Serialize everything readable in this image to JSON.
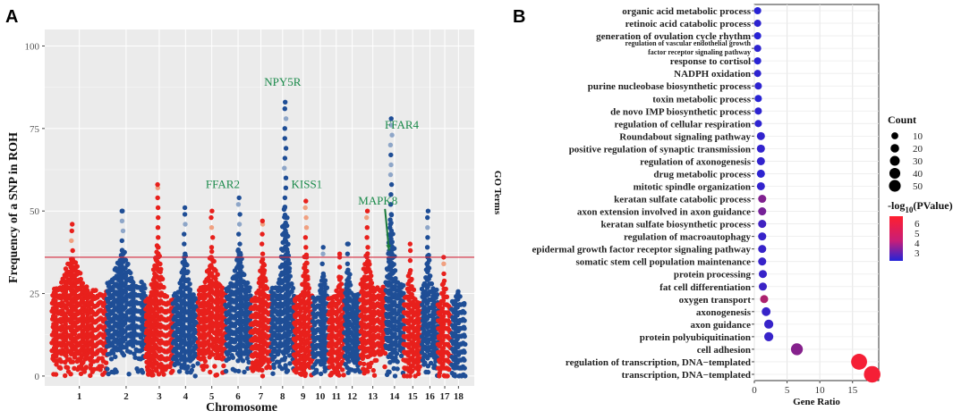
{
  "chart_data": [
    {
      "type": "scatter",
      "panel_label": "A",
      "title": "",
      "xlabel": "Chromosome",
      "ylabel": "Frequency of a SNP in ROH",
      "ylim": [
        -3,
        105
      ],
      "yticks": [
        0,
        25,
        50,
        75,
        100
      ],
      "grid": true,
      "threshold": 36,
      "colors": {
        "odd": "#e8201c",
        "even": "#1f4e96",
        "light_red": "#f0a080",
        "light_blue": "#8ea6c8",
        "threshold": "#d62a3c",
        "gene_label": "#1a8a4a",
        "arrow": "#1a7a3a"
      },
      "chromosomes": [
        {
          "label": "1",
          "n": 48,
          "base": 16,
          "peak": 46
        },
        {
          "label": "2",
          "n": 34,
          "base": 19,
          "peak": 50
        },
        {
          "label": "3",
          "n": 24,
          "base": 14,
          "peak": 58
        },
        {
          "label": "4",
          "n": 22,
          "base": 15,
          "peak": 51
        },
        {
          "label": "5",
          "n": 24,
          "base": 17,
          "peak": 50
        },
        {
          "label": "6",
          "n": 22,
          "base": 18,
          "peak": 54
        },
        {
          "label": "7",
          "n": 18,
          "base": 15,
          "peak": 47
        },
        {
          "label": "8",
          "n": 20,
          "base": 17,
          "peak": 83
        },
        {
          "label": "9",
          "n": 16,
          "base": 14,
          "peak": 53
        },
        {
          "label": "10",
          "n": 14,
          "base": 15,
          "peak": 39
        },
        {
          "label": "11",
          "n": 14,
          "base": 14,
          "peak": 37
        },
        {
          "label": "12",
          "n": 14,
          "base": 15,
          "peak": 40
        },
        {
          "label": "13",
          "n": 22,
          "base": 17,
          "peak": 50
        },
        {
          "label": "14",
          "n": 16,
          "base": 18,
          "peak": 78
        },
        {
          "label": "15",
          "n": 16,
          "base": 13,
          "peak": 40
        },
        {
          "label": "16",
          "n": 14,
          "base": 17,
          "peak": 50
        },
        {
          "label": "17",
          "n": 12,
          "base": 12,
          "peak": 36
        },
        {
          "label": "18",
          "n": 12,
          "base": 13,
          "peak": 25
        }
      ],
      "annotations": [
        {
          "text": "NPY5R",
          "chrom": "8",
          "y": 88,
          "frac": 0.5
        },
        {
          "text": "FFAR4",
          "chrom": "14",
          "y": 75,
          "frac": 0.9
        },
        {
          "text": "FFAR2",
          "chrom": "5",
          "y": 57,
          "frac": 0.9
        },
        {
          "text": "KISS1",
          "chrom": "9",
          "y": 57,
          "frac": 0.7
        },
        {
          "text": "MAPK8",
          "chrom": "13",
          "y": 52,
          "frac": 0.7,
          "arrow_to": {
            "chrom": "14",
            "y": 38,
            "frac": 0.2
          }
        }
      ]
    },
    {
      "type": "scatter",
      "subtype": "go-enrichment-dot",
      "panel_label": "B",
      "title": "",
      "xlabel": "Gene Ratio",
      "ylabel": "GO Terms",
      "xlim": [
        0,
        19
      ],
      "xticks": [
        0,
        5,
        10,
        15
      ],
      "grid": true,
      "legend_position": "right",
      "size_legend": {
        "title": "Count",
        "values": [
          10,
          20,
          30,
          40,
          50
        ]
      },
      "color_legend": {
        "title_prefix": "-log",
        "title_sub": "10",
        "title_suffix": "(PValue)",
        "ticks": [
          6,
          5,
          4,
          3
        ],
        "low_color": "#2323d8",
        "high_color": "#ff1f2e",
        "range": [
          2.2,
          6.7
        ]
      },
      "terms": [
        {
          "term": "organic acid metabolic process",
          "ratio": 0.5,
          "count": 3,
          "pvalue": 2.3
        },
        {
          "term": "retinoic acid catabolic process",
          "ratio": 0.5,
          "count": 3,
          "pvalue": 2.4
        },
        {
          "term": "generation of ovulation cycle rhythm",
          "ratio": 0.5,
          "count": 3,
          "pvalue": 2.3
        },
        {
          "term": "regulation of vascular endothelial growth factor receptor signaling pathway",
          "lines": [
            "regulation of vascular endothelial growth",
            "factor receptor signaling pathway"
          ],
          "ratio": 0.5,
          "count": 3,
          "pvalue": 2.4
        },
        {
          "term": "response to cortisol",
          "ratio": 0.5,
          "count": 3,
          "pvalue": 2.3
        },
        {
          "term": "NADPH oxidation",
          "ratio": 0.5,
          "count": 3,
          "pvalue": 2.4
        },
        {
          "term": "purine nucleobase biosynthetic process",
          "ratio": 0.6,
          "count": 3,
          "pvalue": 2.4
        },
        {
          "term": "toxin metabolic process",
          "ratio": 0.6,
          "count": 3,
          "pvalue": 2.3
        },
        {
          "term": "de novo IMP biosynthetic process",
          "ratio": 0.6,
          "count": 3,
          "pvalue": 2.4
        },
        {
          "term": "regulation of cellular respiration",
          "ratio": 0.6,
          "count": 3,
          "pvalue": 2.4
        },
        {
          "term": "Roundabout signaling pathway",
          "ratio": 1.0,
          "count": 5,
          "pvalue": 2.5
        },
        {
          "term": "positive regulation of synaptic transmission",
          "ratio": 1.0,
          "count": 5,
          "pvalue": 2.5
        },
        {
          "term": "regulation of axonogenesis",
          "ratio": 1.0,
          "count": 5,
          "pvalue": 2.5
        },
        {
          "term": "drug metabolic process",
          "ratio": 1.0,
          "count": 5,
          "pvalue": 2.4
        },
        {
          "term": "mitotic spindle organization",
          "ratio": 1.0,
          "count": 5,
          "pvalue": 2.5
        },
        {
          "term": "keratan sulfate catabolic process",
          "ratio": 1.2,
          "count": 5,
          "pvalue": 4.1
        },
        {
          "term": "axon extension involved in axon guidance",
          "ratio": 1.2,
          "count": 5,
          "pvalue": 3.9
        },
        {
          "term": "keratan sulfate biosynthetic process",
          "ratio": 1.2,
          "count": 5,
          "pvalue": 2.8
        },
        {
          "term": "regulation of macroautophagy",
          "ratio": 1.2,
          "count": 5,
          "pvalue": 2.6
        },
        {
          "term": "epidermal growth factor receptor signaling pathway",
          "ratio": 1.2,
          "count": 5,
          "pvalue": 2.6
        },
        {
          "term": "somatic stem cell population maintenance",
          "ratio": 1.2,
          "count": 5,
          "pvalue": 2.6
        },
        {
          "term": "protein processing",
          "ratio": 1.3,
          "count": 5,
          "pvalue": 2.6
        },
        {
          "term": "fat cell differentiation",
          "ratio": 1.3,
          "count": 5,
          "pvalue": 2.7
        },
        {
          "term": "oxygen transport",
          "ratio": 1.5,
          "count": 5,
          "pvalue": 5.0
        },
        {
          "term": "axonogenesis",
          "ratio": 1.8,
          "count": 7,
          "pvalue": 2.6
        },
        {
          "term": "axon guidance",
          "ratio": 2.2,
          "count": 8,
          "pvalue": 2.6
        },
        {
          "term": "protein polyubiquitination",
          "ratio": 2.2,
          "count": 8,
          "pvalue": 2.6
        },
        {
          "term": "cell adhesion",
          "ratio": 6.5,
          "count": 20,
          "pvalue": 4.2
        },
        {
          "term": "regulation of transcription, DNA−templated",
          "ratio": 16.0,
          "count": 47,
          "pvalue": 6.5
        },
        {
          "term": "transcription, DNA−templated",
          "ratio": 18.0,
          "count": 52,
          "pvalue": 6.5
        }
      ]
    }
  ]
}
